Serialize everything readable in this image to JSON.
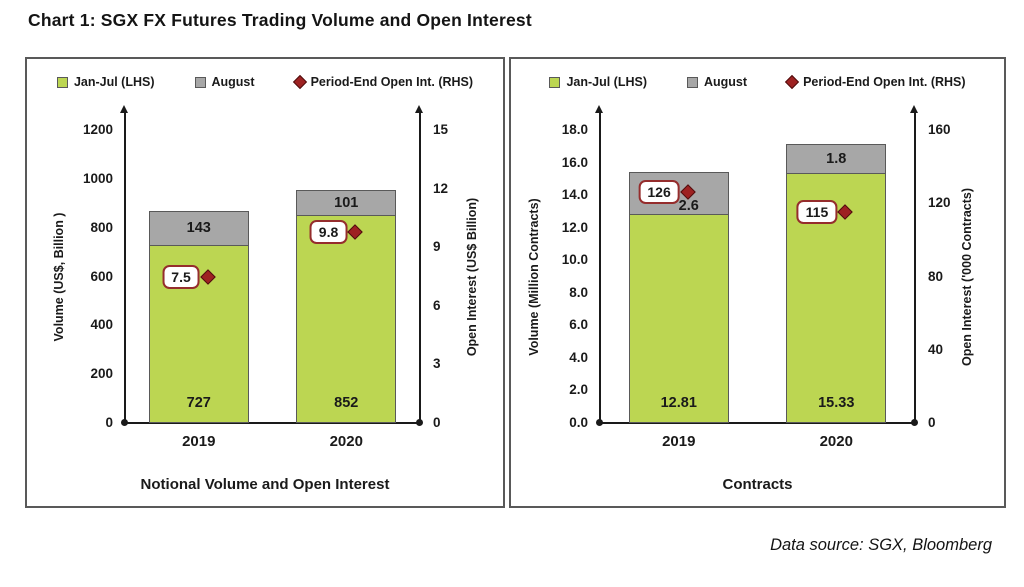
{
  "page": {
    "title": "Chart 1: SGX FX Futures Trading Volume and Open Interest",
    "data_source": "Data source: SGX, Bloomberg"
  },
  "legend": {
    "jan_jul": "Jan-Jul (LHS)",
    "august": "August",
    "open_interest": "Period-End Open Int. (RHS)"
  },
  "colors": {
    "jan_jul_fill": "#bcd652",
    "august_fill": "#a7a7a7",
    "bar_border": "#595959",
    "diamond_fill": "#9e2222",
    "diamond_border": "#4f0f0f",
    "label_box_border": "#952d2d",
    "panel_border": "#595959",
    "axis_ink": "#1a1a1a"
  },
  "chart_data": [
    {
      "type": "bar",
      "panel_title": "Notional Volume and Open Interest",
      "categories": [
        "2019",
        "2020"
      ],
      "series": [
        {
          "name": "Jan-Jul (LHS)",
          "axis": "left",
          "color": "#bcd652",
          "values": [
            727,
            852
          ],
          "labels": [
            "727",
            "852"
          ]
        },
        {
          "name": "August",
          "axis": "left",
          "color": "#a7a7a7",
          "values": [
            143,
            101
          ],
          "labels": [
            "143",
            "101"
          ]
        },
        {
          "name": "Period-End Open Int. (RHS)",
          "axis": "right",
          "marker": "diamond",
          "color": "#9e2222",
          "values": [
            7.5,
            9.8
          ],
          "labels": [
            "7.5",
            "9.8"
          ]
        }
      ],
      "left_axis": {
        "label": "Volume (US$, Billion )",
        "min": 0,
        "max": 1200,
        "ticks": [
          "0",
          "200",
          "400",
          "600",
          "800",
          "1000",
          "1200"
        ]
      },
      "right_axis": {
        "label": "Open Interest (US$ Billion)",
        "min": 0,
        "max": 15,
        "ticks": [
          "0",
          "3",
          "6",
          "9",
          "12",
          "15"
        ]
      },
      "grid": false,
      "legend_position": "top"
    },
    {
      "type": "bar",
      "panel_title": "Contracts",
      "categories": [
        "2019",
        "2020"
      ],
      "series": [
        {
          "name": "Jan-Jul (LHS)",
          "axis": "left",
          "color": "#bcd652",
          "values": [
            12.81,
            15.33
          ],
          "labels": [
            "12.81",
            "15.33"
          ]
        },
        {
          "name": "August",
          "axis": "left",
          "color": "#a7a7a7",
          "values": [
            2.6,
            1.8
          ],
          "labels": [
            "2.6",
            "1.8"
          ]
        },
        {
          "name": "Period-End Open Int. (RHS)",
          "axis": "right",
          "marker": "diamond",
          "color": "#9e2222",
          "values": [
            126,
            115
          ],
          "labels": [
            "126",
            "115"
          ]
        }
      ],
      "left_axis": {
        "label": "Volume (Million Contracts)",
        "min": 0,
        "max": 18,
        "ticks": [
          "0.0",
          "2.0",
          "4.0",
          "6.0",
          "8.0",
          "10.0",
          "12.0",
          "14.0",
          "16.0",
          "18.0"
        ]
      },
      "right_axis": {
        "label": "Open Interest ('000 Contracts)",
        "min": 0,
        "max": 160,
        "ticks": [
          "0",
          "40",
          "80",
          "120",
          "160"
        ]
      },
      "grid": false,
      "legend_position": "top"
    }
  ]
}
